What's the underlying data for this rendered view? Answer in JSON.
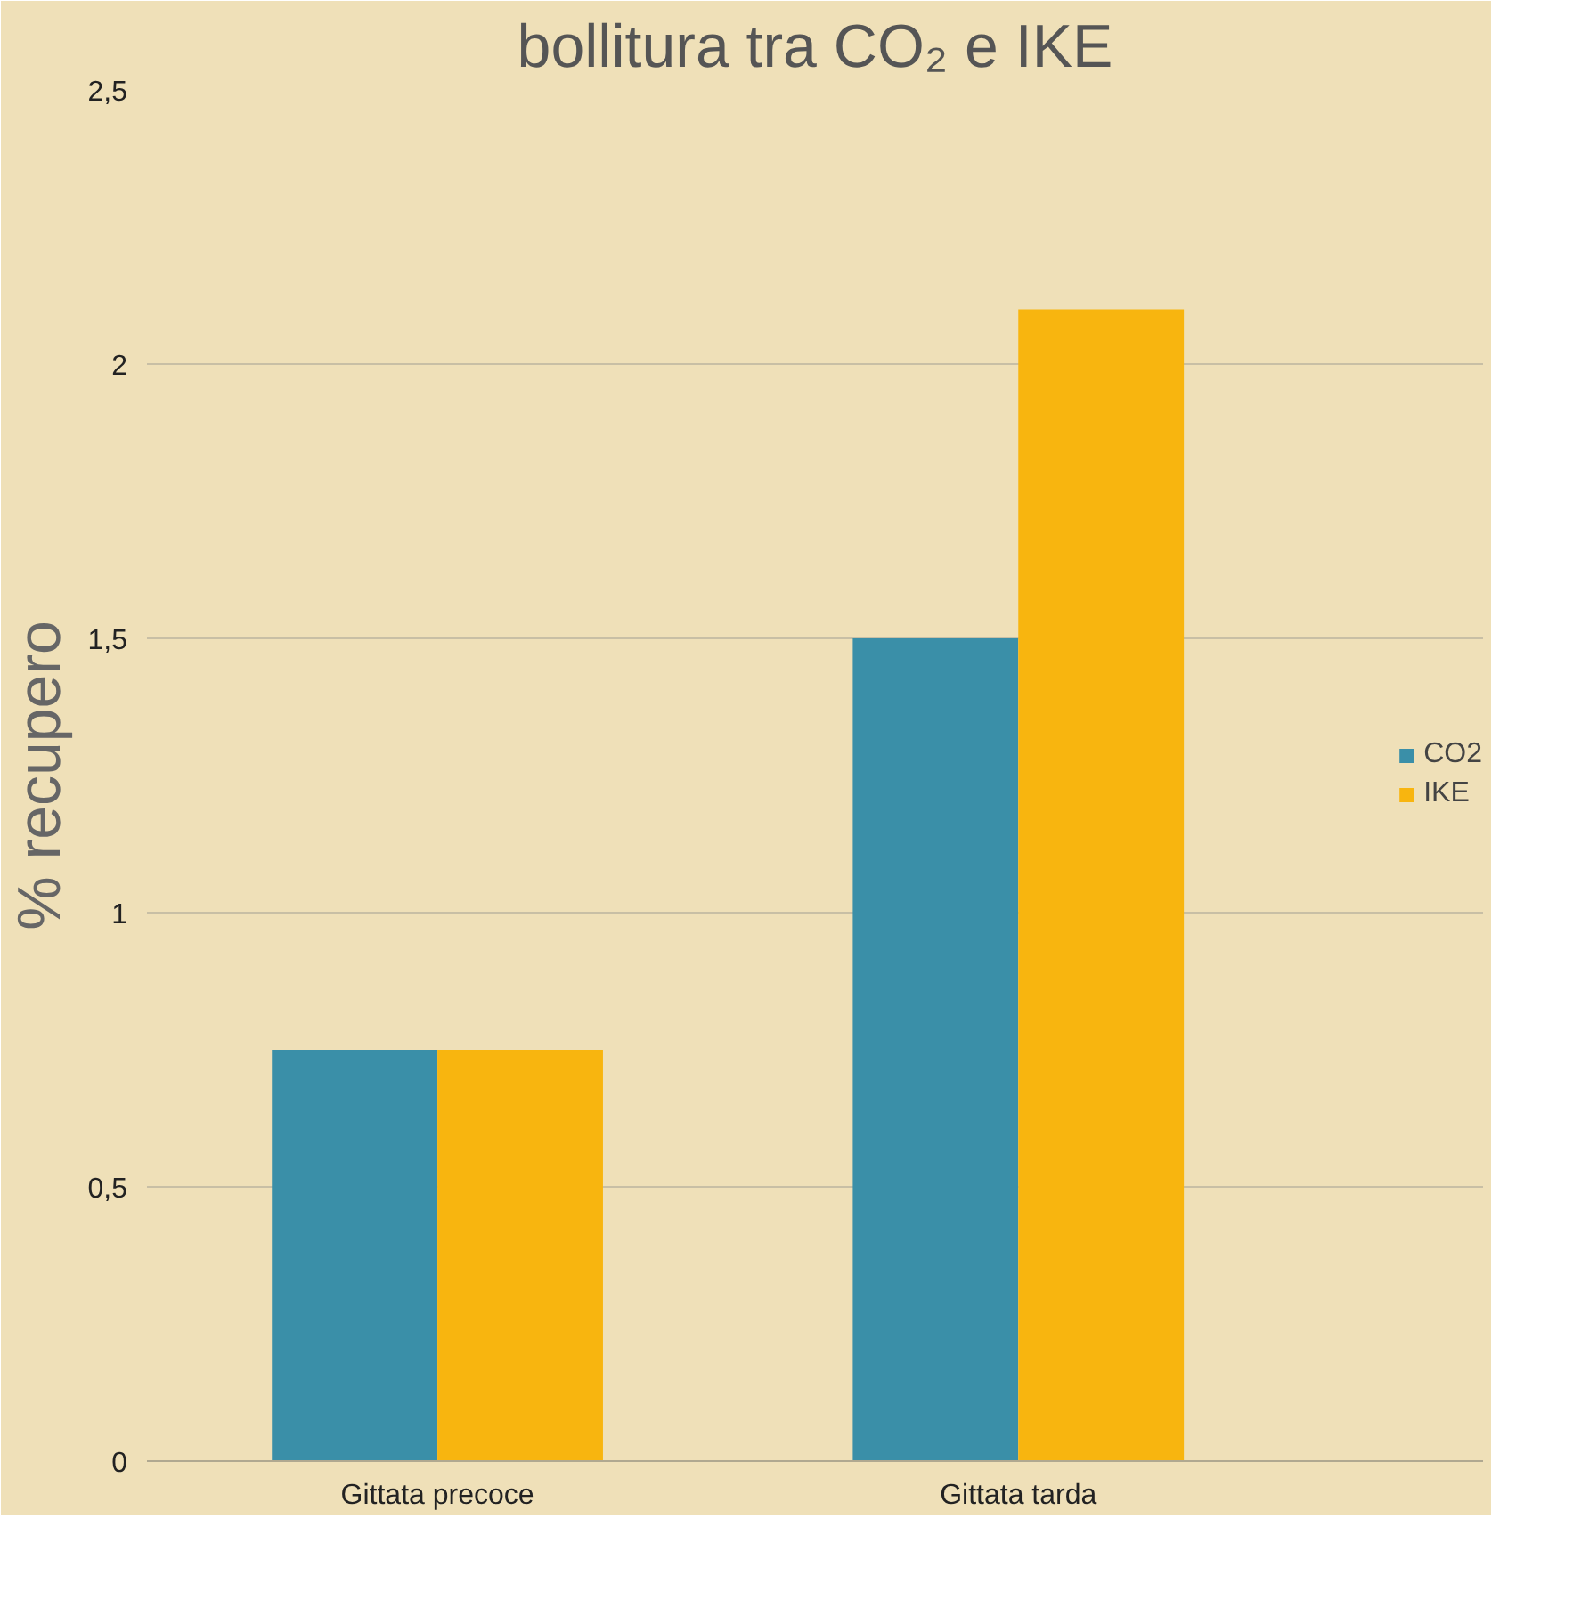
{
  "chart_data": {
    "type": "bar",
    "title": "bollitura tra CO₂ e IKE",
    "ylabel": "% recupero",
    "categories": [
      "Gittata precoce",
      "Gittata tarda"
    ],
    "series": [
      {
        "name": "CO2",
        "color": "#3a8fa8",
        "values": [
          0.75,
          1.5
        ]
      },
      {
        "name": "IKE",
        "color": "#f8b50f",
        "values": [
          0.75,
          2.1
        ]
      }
    ],
    "ylim": [
      0,
      2.5
    ],
    "yticks": [
      0,
      {
        "value": 0.5,
        "label": "0,5"
      },
      1,
      {
        "value": 1.5,
        "label": "1,5"
      },
      2,
      {
        "value": 2.5,
        "label": "2,5"
      }
    ],
    "grid": "y",
    "legend": "right"
  }
}
